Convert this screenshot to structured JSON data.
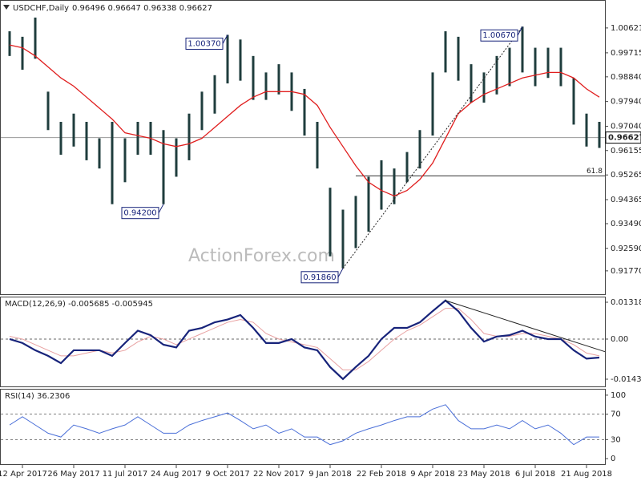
{
  "chart_data": [
    {
      "type": "range-bar",
      "title": "USDCHF,Daily",
      "subtitle": "0.96496 0.96647 0.96338 0.96627",
      "watermark": "ActionForex.com",
      "high": [
        1.005,
        1.003,
        1.01,
        0.983,
        0.972,
        0.975,
        0.972,
        0.966,
        0.972,
        0.966,
        0.972,
        0.972,
        0.969,
        0.966,
        0.975,
        0.983,
        0.989,
        1.0037,
        1.002,
        0.996,
        0.99,
        0.993,
        0.99,
        0.984,
        0.972,
        0.948,
        0.94,
        0.945,
        0.952,
        0.958,
        0.955,
        0.961,
        0.969,
        0.99,
        1.005,
        1.003,
        0.993,
        0.99,
        0.996,
        0.999,
        1.0067,
        0.999,
        0.999,
        0.999,
        0.988,
        0.975,
        0.972
      ],
      "low": [
        0.996,
        0.991,
        0.995,
        0.969,
        0.96,
        0.963,
        0.958,
        0.955,
        0.942,
        0.95,
        0.96,
        0.96,
        0.942,
        0.952,
        0.958,
        0.969,
        0.975,
        0.986,
        0.987,
        0.98,
        0.98,
        0.982,
        0.976,
        0.967,
        0.955,
        0.923,
        0.9186,
        0.926,
        0.932,
        0.94,
        0.942,
        0.95,
        0.955,
        0.967,
        0.99,
        0.987,
        0.979,
        0.979,
        0.982,
        0.985,
        0.99,
        0.985,
        0.988,
        0.985,
        0.971,
        0.963,
        0.9625
      ],
      "color": "#1f3d3d",
      "ma_values": [
        1.0,
        0.999,
        0.996,
        0.992,
        0.988,
        0.985,
        0.981,
        0.977,
        0.973,
        0.968,
        0.967,
        0.966,
        0.964,
        0.963,
        0.964,
        0.966,
        0.97,
        0.974,
        0.978,
        0.981,
        0.983,
        0.983,
        0.983,
        0.982,
        0.978,
        0.97,
        0.963,
        0.956,
        0.95,
        0.947,
        0.945,
        0.947,
        0.951,
        0.957,
        0.966,
        0.975,
        0.979,
        0.982,
        0.984,
        0.986,
        0.988,
        0.989,
        0.99,
        0.99,
        0.988,
        0.984,
        0.981
      ],
      "ma_color": "#e01e1e",
      "annotations": [
        {
          "label": "1.00370",
          "value": 1.0037,
          "index": 17
        },
        {
          "label": "0.94200",
          "value": 0.942,
          "index": 12
        },
        {
          "label": "1.00670",
          "value": 1.0067,
          "index": 40
        },
        {
          "label": "0.91860",
          "value": 0.9186,
          "index": 26
        }
      ],
      "trendline": {
        "index": [
          26,
          40
        ],
        "values": [
          0.9186,
          1.0067
        ]
      },
      "fib_level": {
        "label": "61.8",
        "value": 0.9523,
        "index": 27
      },
      "last_price": {
        "label": "0.96627",
        "value": 0.96627
      },
      "ylim": [
        0.9089,
        1.0164
      ],
      "yticks": [
        1.00621,
        0.99715,
        {
          "value": 0.9884,
          "label": "0.98840"
        },
        {
          "value": 0.9794,
          "label": "0.97940"
        },
        {
          "value": 0.9704,
          "label": "0.97040"
        },
        0.96155,
        0.95265,
        0.94365,
        {
          "value": 0.9349,
          "label": "0.93490"
        },
        {
          "value": 0.9259,
          "label": "0.92590"
        },
        {
          "value": 0.9177,
          "label": "0.91770"
        }
      ]
    },
    {
      "type": "line",
      "title": "MACD(12,26,9) -0.005685 -0.005945",
      "series": [
        {
          "color": "#17237a",
          "values": [
            0.0,
            -0.0014,
            -0.004,
            -0.006,
            -0.0086,
            -0.004,
            -0.004,
            -0.004,
            -0.006,
            -0.0014,
            0.003,
            0.0014,
            -0.002,
            -0.003,
            0.003,
            0.004,
            0.006,
            0.007,
            0.0086,
            0.004,
            -0.0014,
            -0.0014,
            0.0,
            -0.003,
            -0.004,
            -0.01,
            -0.0143,
            -0.01,
            -0.006,
            0.0,
            0.004,
            0.004,
            0.006,
            0.01,
            0.0138,
            0.01,
            0.004,
            -0.0009,
            0.0009,
            0.0014,
            0.003,
            0.0009,
            0.0,
            0.0,
            -0.004,
            -0.007,
            -0.0066
          ]
        },
        {
          "color": "#e8a0a0",
          "values": [
            0.001,
            0.0,
            -0.002,
            -0.004,
            -0.006,
            -0.006,
            -0.005,
            -0.004,
            -0.005,
            -0.004,
            -0.001,
            0.001,
            0.0,
            -0.002,
            0.0,
            0.002,
            0.004,
            0.006,
            0.007,
            0.006,
            0.002,
            0.0,
            -0.001,
            -0.002,
            -0.003,
            -0.007,
            -0.011,
            -0.011,
            -0.008,
            -0.004,
            0.0,
            0.003,
            0.005,
            0.008,
            0.011,
            0.011,
            0.007,
            0.002,
            0.001,
            0.001,
            0.002,
            0.002,
            0.001,
            0.0,
            -0.002,
            -0.005,
            -0.006
          ]
        }
      ],
      "trendline": {
        "index": [
          34,
          46
        ],
        "values": [
          0.0138,
          -0.0045
        ]
      },
      "ylim": [
        -0.01721,
        0.01519
      ],
      "yticks": [
        0.013184,
        {
          "value": 0,
          "label": "0.00"
        },
        -0.014339
      ],
      "grid": [
        0
      ]
    },
    {
      "type": "line",
      "title": "RSI(14) 36.2306",
      "categories": [
        null,
        "12 Apr 2017",
        null,
        null,
        null,
        "26 May 2017",
        null,
        null,
        null,
        "11 Jul 2017",
        null,
        null,
        null,
        "24 Aug 2017",
        null,
        null,
        null,
        "9 Oct 2017",
        null,
        null,
        null,
        "22 Nov 2017",
        null,
        null,
        null,
        "9 Jan 2018",
        null,
        null,
        null,
        "22 Feb 2018",
        null,
        null,
        null,
        "9 Apr 2018",
        null,
        null,
        null,
        "23 May 2018",
        null,
        null,
        null,
        "6 Jul 2018",
        null,
        null,
        null,
        "21 Aug 2018",
        null
      ],
      "series": [
        {
          "color": "#4a6fd8",
          "values": [
            53,
            66,
            53,
            40,
            34,
            53,
            47,
            40,
            47,
            53,
            66,
            53,
            40,
            40,
            53,
            60,
            66,
            72,
            60,
            47,
            53,
            40,
            47,
            34,
            34,
            22,
            28,
            40,
            47,
            53,
            60,
            66,
            66,
            78,
            85,
            60,
            47,
            47,
            53,
            47,
            60,
            47,
            53,
            40,
            22,
            34,
            34
          ]
        }
      ],
      "ylim": [
        -10,
        110
      ],
      "yticks": [
        100,
        70,
        30,
        0
      ],
      "grid": [
        70,
        30
      ]
    }
  ]
}
